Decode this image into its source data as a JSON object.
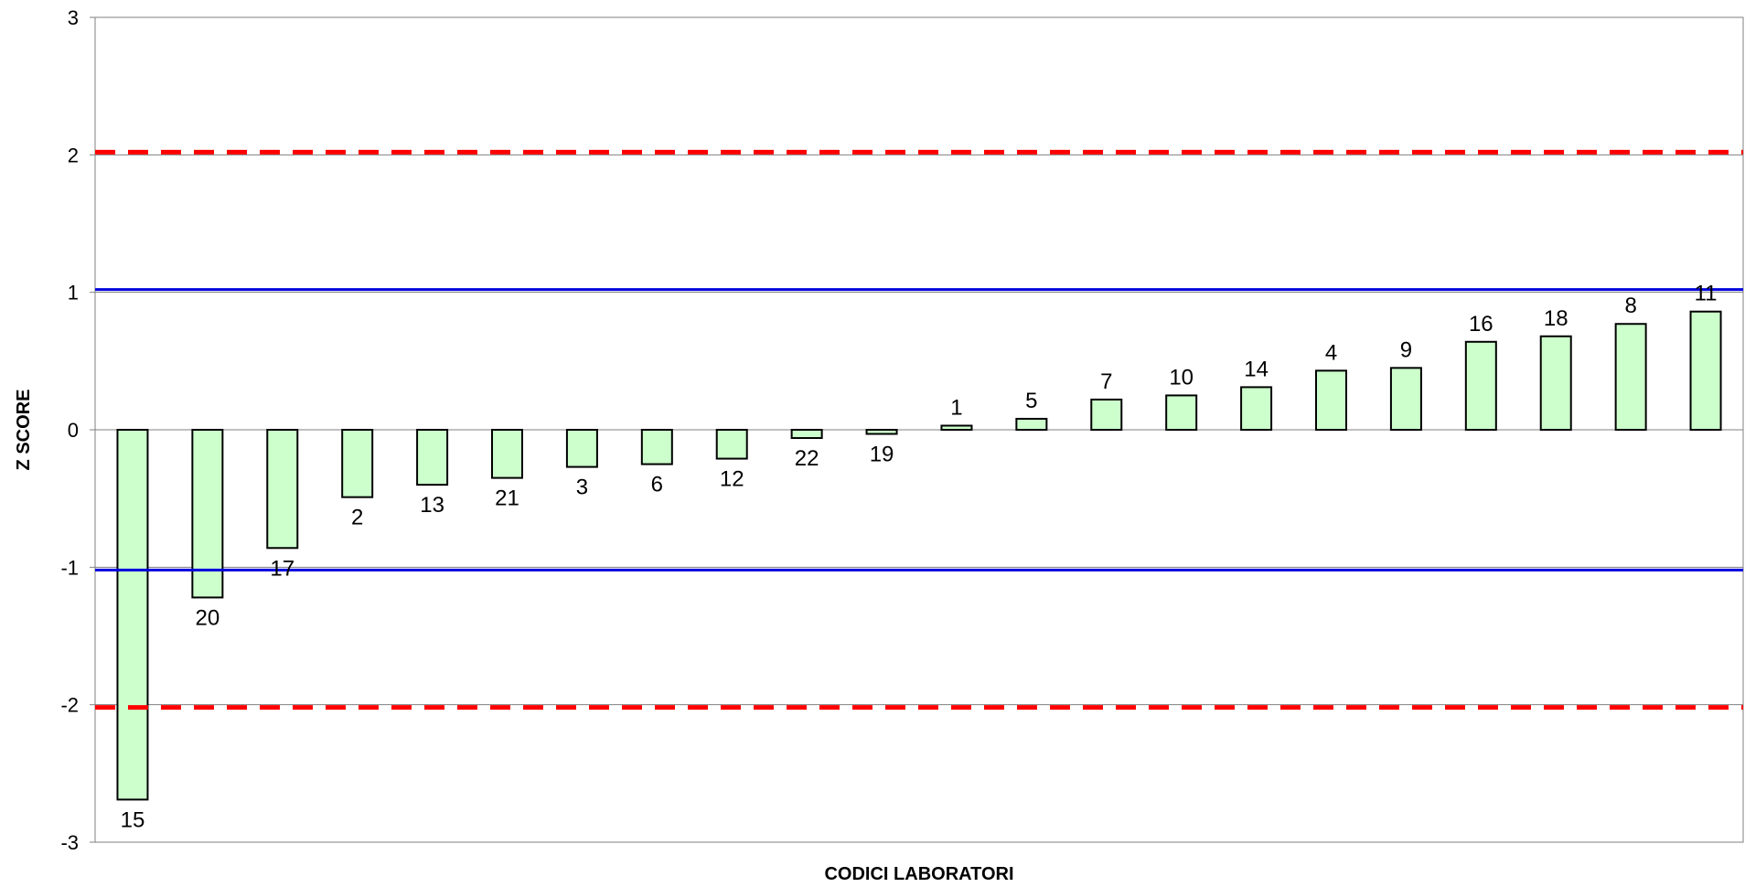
{
  "chart_data": {
    "type": "bar",
    "title": "",
    "xlabel": "CODICI LABORATORI",
    "ylabel": "Z SCORE",
    "ylim": [
      -3,
      3
    ],
    "yticks": [
      "-3",
      "-2",
      "-1",
      "0",
      "1",
      "2",
      "3"
    ],
    "grid": true,
    "categories": [
      "15",
      "20",
      "17",
      "2",
      "13",
      "21",
      "3",
      "6",
      "12",
      "22",
      "19",
      "1",
      "5",
      "7",
      "10",
      "14",
      "4",
      "9",
      "16",
      "18",
      "8",
      "11"
    ],
    "values": [
      -2.69,
      -1.22,
      -0.86,
      -0.49,
      -0.4,
      -0.35,
      -0.27,
      -0.25,
      -0.21,
      -0.06,
      -0.03,
      0.03,
      0.08,
      0.22,
      0.25,
      0.31,
      0.43,
      0.45,
      0.64,
      0.68,
      0.77,
      0.86
    ],
    "reference_lines": [
      {
        "y": 2.02,
        "style": "dashed",
        "color": "#ff0000"
      },
      {
        "y": -2.02,
        "style": "dashed",
        "color": "#ff0000"
      },
      {
        "y": 1.02,
        "style": "solid",
        "color": "#0000dd"
      },
      {
        "y": -1.02,
        "style": "solid",
        "color": "#0000dd"
      }
    ],
    "colors": {
      "bar_fill": "#ccffcc",
      "bar_stroke": "#000000",
      "gridline": "#808080"
    }
  }
}
